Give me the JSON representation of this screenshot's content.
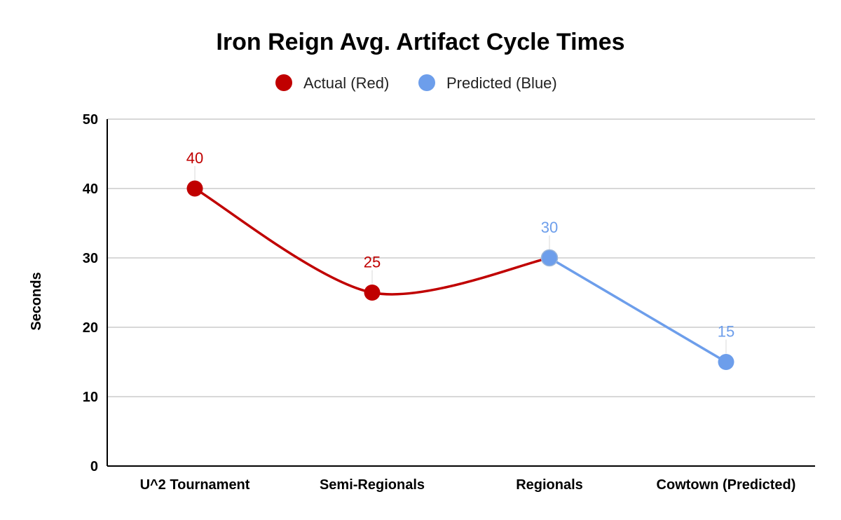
{
  "chart_data": {
    "type": "line",
    "title": "Iron Reign Avg. Artifact Cycle Times",
    "ylabel": "Seconds",
    "xlabel": "",
    "categories": [
      "U^2 Tournament",
      "Semi-Regionals",
      "Regionals",
      "Cowtown (Predicted)"
    ],
    "ylim": [
      0,
      50
    ],
    "yticks": [
      0,
      10,
      20,
      30,
      40,
      50
    ],
    "grid": true,
    "legend_position": "top",
    "series": [
      {
        "name": "Actual (Red)",
        "color": "#c00000",
        "smooth": true,
        "values": [
          40,
          25,
          30,
          null
        ]
      },
      {
        "name": "Predicted (Blue)",
        "color": "#6d9eeb",
        "smooth": false,
        "values": [
          null,
          null,
          30,
          15
        ]
      }
    ],
    "data_labels": [
      {
        "category_index": 0,
        "value": 40,
        "text": "40",
        "color": "#c00000"
      },
      {
        "category_index": 1,
        "value": 25,
        "text": "25",
        "color": "#c00000"
      },
      {
        "category_index": 2,
        "value": 30,
        "text": "30",
        "color": "#6d9eeb"
      },
      {
        "category_index": 3,
        "value": 15,
        "text": "15",
        "color": "#6d9eeb"
      }
    ]
  }
}
